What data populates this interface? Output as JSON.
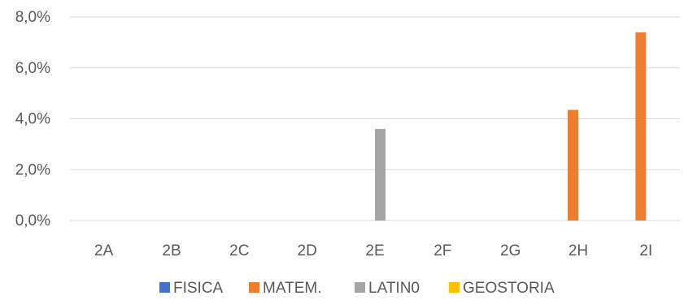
{
  "chart_data": {
    "type": "bar",
    "categories": [
      "2A",
      "2B",
      "2C",
      "2D",
      "2E",
      "2F",
      "2G",
      "2H",
      "2I"
    ],
    "series": [
      {
        "name": "FISICA",
        "color": "#4472C4",
        "values": [
          0,
          0,
          0,
          0,
          0,
          0,
          0,
          0,
          0
        ]
      },
      {
        "name": "MATEM.",
        "color": "#ED7D31",
        "values": [
          0,
          0,
          0,
          0,
          0,
          0,
          0,
          4.35,
          7.4
        ]
      },
      {
        "name": "LATIN0",
        "color": "#A5A5A5",
        "values": [
          0,
          0,
          0,
          0,
          3.6,
          0,
          0,
          0,
          0
        ]
      },
      {
        "name": "GEOSTORIA",
        "color": "#FFC000",
        "values": [
          0,
          0,
          0,
          0,
          0,
          0,
          0,
          0,
          0
        ]
      }
    ],
    "yticks": [
      0,
      2,
      4,
      6,
      8
    ],
    "ytick_labels": [
      "0,0%",
      "2,0%",
      "4,0%",
      "6,0%",
      "8,0%"
    ],
    "ylim": [
      0,
      8
    ],
    "grid": true,
    "gridline_color": "#D9D9D9",
    "legend_position": "bottom"
  }
}
